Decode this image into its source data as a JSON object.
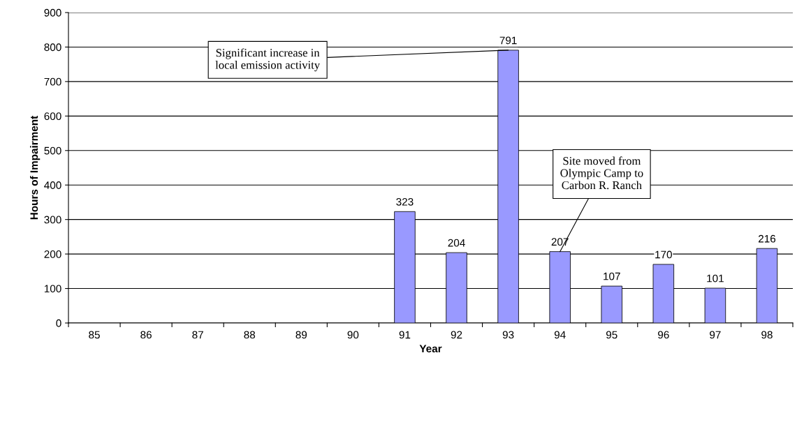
{
  "chart_data": {
    "type": "bar",
    "xlabel": "Year",
    "ylabel": "Hours of Impairment",
    "categories": [
      "85",
      "86",
      "87",
      "88",
      "89",
      "90",
      "91",
      "92",
      "93",
      "94",
      "95",
      "96",
      "97",
      "98"
    ],
    "values": [
      null,
      null,
      null,
      null,
      null,
      null,
      323,
      204,
      791,
      207,
      107,
      170,
      101,
      216
    ],
    "color": "#9999ff",
    "ylim": [
      0,
      900
    ],
    "yticks": [
      0,
      100,
      200,
      300,
      400,
      500,
      600,
      700,
      800,
      900
    ],
    "grid": "y",
    "data_labels": true,
    "annotations": [
      {
        "text": "Significant increase in\nlocal emission activity",
        "x": "93",
        "y": 791
      },
      {
        "text": "Site moved from\nOlympic Camp to\nCarbon R. Ranch",
        "x": "94",
        "y": 207
      }
    ]
  }
}
